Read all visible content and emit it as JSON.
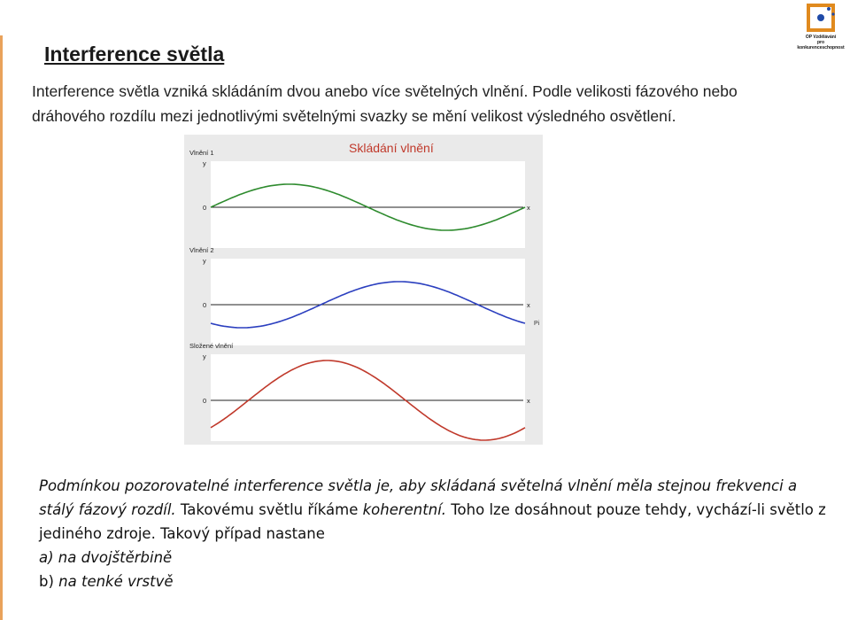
{
  "heading": {
    "title": "Interference světla"
  },
  "intro": {
    "text": "Interference světla vzniká skládáním dvou anebo více světelných vlnění. Podle velikosti fázového nebo dráhového rozdílu mezi jednotlivými světelnými svazky se mění velikost výsledného osvětlení."
  },
  "logo": {
    "line1": "OP Vzdělávání",
    "line2": "pro konkurenceschopnost"
  },
  "figure": {
    "title": "Skládání vlnění",
    "panels": [
      {
        "label": "Vlnění 1",
        "ylabel": "y",
        "zero": "0",
        "xlabel": "x",
        "color": "#2e8b2e"
      },
      {
        "label": "Vlnění 2",
        "ylabel": "y",
        "zero": "0",
        "xlabel": "x",
        "color": "#2b3fbf"
      },
      {
        "label": "Složené vlnění",
        "ylabel": "y",
        "zero": "0",
        "xlabel": "x",
        "color": "#c0392b"
      }
    ],
    "side_label": "Pi"
  },
  "conditions": {
    "p1_italic": "Podmínkou pozorovatelné interference světla je, aby skládaná světelná vlnění měla stejnou frekvenci a stálý fázový rozdíl.",
    "p1_normal1": " Takovému světlu říkáme ",
    "p1_italic2": "koherentní.",
    "p1_normal2": " Toho lze dosáhnout pouze tehdy, vychází-li světlo z jediného zdroje. Takový případ nastane",
    "case_a": "a) na dvojštěrbině",
    "case_b_prefix": "b) ",
    "case_b_text": "na tenké vrstvě"
  }
}
